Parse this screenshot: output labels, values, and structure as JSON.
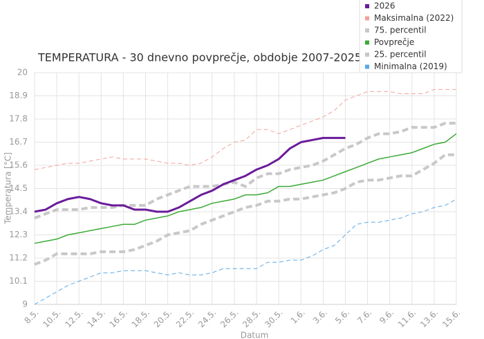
{
  "chart_data": {
    "type": "line",
    "title": "TEMPERATURA - 30 dnevno povprečje, obdobje 2007-2025",
    "xlabel": "Datum",
    "ylabel": "Temperatura [°C]",
    "categories": [
      "8.5.",
      null,
      "10.5.",
      null,
      "12.5.",
      null,
      "14.5.",
      null,
      "16.5.",
      null,
      "18.5.",
      null,
      "20.5.",
      null,
      "22.5.",
      null,
      "24.5.",
      null,
      "26.5.",
      null,
      "28.5.",
      null,
      "30.5.",
      null,
      "1.6.",
      null,
      "3.6.",
      null,
      "5.6.",
      null,
      "7.6.",
      null,
      "9.6.",
      null,
      "11.6.",
      null,
      "13.6.",
      null,
      "15.6."
    ],
    "ylim": [
      9,
      20
    ],
    "yticks": [
      9,
      10.1,
      11.2,
      12.3,
      13.4,
      14.5,
      15.6,
      16.7,
      17.8,
      18.9,
      20
    ],
    "grid": true,
    "legend": "upper right",
    "series": [
      {
        "name": "2026",
        "color": "#6a1b9a",
        "width": 3,
        "dashed": false,
        "values": [
          13.4,
          13.5,
          13.8,
          14.0,
          14.1,
          14.0,
          13.8,
          13.7,
          13.7,
          13.5,
          13.5,
          13.4,
          13.4,
          13.6,
          13.9,
          14.2,
          14.4,
          14.7,
          14.9,
          15.1,
          15.4,
          15.6,
          15.9,
          16.4,
          16.7,
          16.8,
          16.9,
          16.9,
          16.9,
          null,
          null,
          null,
          null,
          null,
          null,
          null,
          null,
          null,
          null
        ]
      },
      {
        "name": "Maksimalna (2022)",
        "color": "#f4a09a",
        "width": 1,
        "dashed": true,
        "values": [
          15.4,
          15.5,
          15.6,
          15.7,
          15.7,
          15.8,
          15.9,
          16.0,
          15.9,
          15.9,
          15.9,
          15.8,
          15.7,
          15.7,
          15.6,
          15.7,
          16.0,
          16.4,
          16.7,
          16.8,
          17.3,
          17.3,
          17.1,
          17.3,
          17.5,
          17.7,
          17.9,
          18.2,
          18.7,
          18.9,
          19.1,
          19.1,
          19.1,
          19.0,
          19.0,
          19.0,
          19.2,
          19.2,
          19.2
        ]
      },
      {
        "name": "75. percentil",
        "color": "#c8c8c8",
        "width": 4,
        "dashed": true,
        "values": [
          13.1,
          13.3,
          13.5,
          13.5,
          13.5,
          13.6,
          13.6,
          13.6,
          13.7,
          13.7,
          13.7,
          14.0,
          14.2,
          14.4,
          14.6,
          14.6,
          14.6,
          14.7,
          14.8,
          14.6,
          15.0,
          15.2,
          15.2,
          15.4,
          15.5,
          15.6,
          15.8,
          16.1,
          16.4,
          16.6,
          16.9,
          17.1,
          17.1,
          17.2,
          17.4,
          17.4,
          17.4,
          17.6,
          17.6
        ]
      },
      {
        "name": "Povprečje",
        "color": "#3aaa35",
        "width": 1.5,
        "dashed": false,
        "values": [
          11.9,
          12.0,
          12.1,
          12.3,
          12.4,
          12.5,
          12.6,
          12.7,
          12.8,
          12.8,
          13.0,
          13.1,
          13.2,
          13.4,
          13.5,
          13.6,
          13.8,
          13.9,
          14.0,
          14.2,
          14.2,
          14.3,
          14.6,
          14.6,
          14.7,
          14.8,
          14.9,
          15.1,
          15.3,
          15.5,
          15.7,
          15.9,
          16.0,
          16.1,
          16.2,
          16.4,
          16.6,
          16.7,
          17.1
        ]
      },
      {
        "name": "25. percentil",
        "color": "#c8c8c8",
        "width": 4,
        "dashed": true,
        "values": [
          10.9,
          11.1,
          11.4,
          11.4,
          11.4,
          11.4,
          11.5,
          11.5,
          11.5,
          11.6,
          11.8,
          12.0,
          12.3,
          12.4,
          12.5,
          12.8,
          13.0,
          13.2,
          13.4,
          13.6,
          13.7,
          13.9,
          13.9,
          14.0,
          14.0,
          14.1,
          14.2,
          14.3,
          14.5,
          14.8,
          14.9,
          14.9,
          15.0,
          15.1,
          15.1,
          15.4,
          15.7,
          16.1,
          16.1
        ]
      },
      {
        "name": "Minimalna (2019)",
        "color": "#5aa9e6",
        "width": 1,
        "dashed": true,
        "values": [
          9.0,
          9.3,
          9.6,
          9.9,
          10.1,
          10.3,
          10.5,
          10.5,
          10.6,
          10.6,
          10.6,
          10.5,
          10.4,
          10.5,
          10.4,
          10.4,
          10.5,
          10.7,
          10.7,
          10.7,
          10.7,
          11.0,
          11.0,
          11.1,
          11.1,
          11.3,
          11.6,
          11.8,
          12.3,
          12.8,
          12.9,
          12.9,
          13.0,
          13.1,
          13.3,
          13.4,
          13.6,
          13.7,
          14.0
        ]
      }
    ]
  }
}
